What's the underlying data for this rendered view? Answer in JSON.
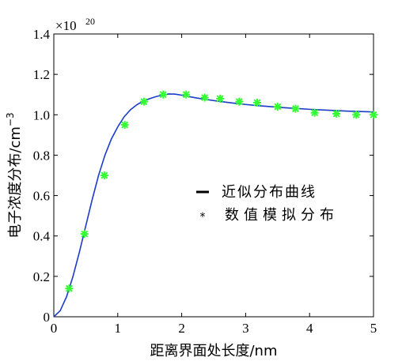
{
  "chart_data": {
    "type": "line",
    "xlabel": "距离界面处长度/nm",
    "ylabel_main": "电子浓度分布/cm",
    "ylabel_exp": "−3",
    "y_multiplier_base": "×10",
    "y_multiplier_exp": "20",
    "xlim": [
      0,
      5
    ],
    "ylim": [
      0,
      1.4
    ],
    "x_ticks": [
      0,
      1,
      2,
      3,
      4,
      5
    ],
    "x_tick_labels": [
      "0",
      "1",
      "2",
      "3",
      "4",
      "5"
    ],
    "y_ticks": [
      0,
      0.2,
      0.4,
      0.6,
      0.8,
      1.0,
      1.2,
      1.4
    ],
    "y_tick_labels": [
      "0",
      "0.2",
      "0.4",
      "0.6",
      "0.8",
      "1.0",
      "1.2",
      "1.4"
    ],
    "grid": false,
    "legend_position": "center-right",
    "series": [
      {
        "name": "近似分布曲线",
        "style": "line",
        "color": "#1a3cc8",
        "x": [
          0,
          0.1,
          0.2,
          0.3,
          0.4,
          0.5,
          0.6,
          0.7,
          0.8,
          0.9,
          1.0,
          1.1,
          1.2,
          1.3,
          1.4,
          1.5,
          1.6,
          1.7,
          1.8,
          1.9,
          2.0,
          2.2,
          2.4,
          2.6,
          2.8,
          3.0,
          3.2,
          3.4,
          3.6,
          3.8,
          4.0,
          4.2,
          4.4,
          4.6,
          4.8,
          5.0
        ],
        "y": [
          0,
          0.03,
          0.1,
          0.2,
          0.32,
          0.45,
          0.58,
          0.7,
          0.8,
          0.88,
          0.94,
          0.99,
          1.025,
          1.05,
          1.068,
          1.08,
          1.09,
          1.098,
          1.103,
          1.102,
          1.097,
          1.085,
          1.075,
          1.066,
          1.058,
          1.051,
          1.045,
          1.04,
          1.035,
          1.031,
          1.027,
          1.024,
          1.021,
          1.018,
          1.016,
          1.014
        ]
      },
      {
        "name": "数值模拟分布",
        "style": "marker",
        "marker": "*",
        "color": "#33ff33",
        "x": [
          0.24,
          0.48,
          0.79,
          1.11,
          1.41,
          1.71,
          2.07,
          2.36,
          2.6,
          2.9,
          3.18,
          3.5,
          3.78,
          4.08,
          4.42,
          4.73,
          5.0
        ],
        "y": [
          0.14,
          0.41,
          0.7,
          0.95,
          1.065,
          1.1,
          1.1,
          1.085,
          1.08,
          1.065,
          1.06,
          1.04,
          1.03,
          1.01,
          1.005,
          1.0,
          1.0
        ]
      }
    ]
  }
}
